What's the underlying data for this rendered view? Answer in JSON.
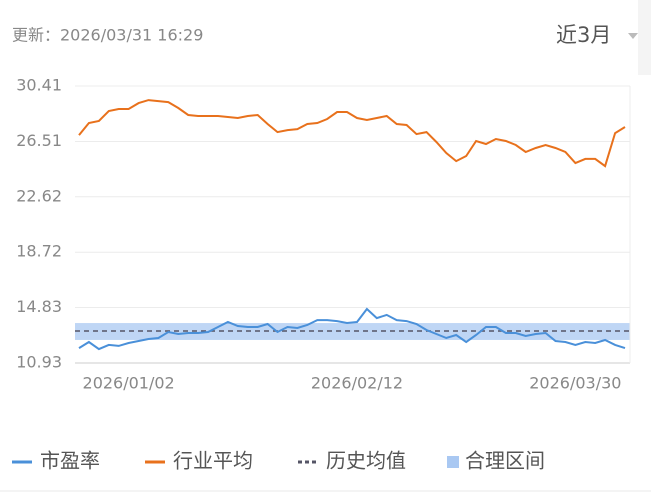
{
  "header": {
    "update": "更新：2026/03/31 16:29",
    "period": "近3月"
  },
  "chart_data": {
    "type": "line",
    "categories": [
      null,
      null,
      null,
      null,
      null,
      "2026/01/02",
      null,
      null,
      null,
      null,
      null,
      null,
      null,
      null,
      null,
      null,
      null,
      null,
      null,
      null,
      null,
      null,
      null,
      null,
      null,
      null,
      null,
      null,
      "2026/02/12",
      null,
      null,
      null,
      null,
      null,
      null,
      null,
      null,
      null,
      null,
      null,
      null,
      null,
      null,
      null,
      null,
      null,
      null,
      null,
      null,
      null,
      "2026/03/30",
      null,
      null,
      null,
      null,
      null
    ],
    "series": [
      {
        "name": "市盈率",
        "color": "#4a90d9",
        "values": [
          11.98,
          12.41,
          11.91,
          12.2,
          12.13,
          12.34,
          12.48,
          12.62,
          12.69,
          13.11,
          12.97,
          13.04,
          13.04,
          13.11,
          13.46,
          13.81,
          13.53,
          13.46,
          13.46,
          13.67,
          13.11,
          13.46,
          13.39,
          13.6,
          13.95,
          13.95,
          13.88,
          13.74,
          13.81,
          14.73,
          14.09,
          14.31,
          13.95,
          13.88,
          13.67,
          13.25,
          12.97,
          12.69,
          12.9,
          12.41,
          12.9,
          13.46,
          13.46,
          13.04,
          13.04,
          12.83,
          12.97,
          13.04,
          12.48,
          12.41,
          12.2,
          12.41,
          12.34,
          12.55,
          12.2,
          11.98
        ]
      },
      {
        "name": "行业平均",
        "color": "#e8711c",
        "values": [
          26.96,
          27.81,
          27.95,
          28.65,
          28.79,
          28.79,
          29.21,
          29.42,
          29.35,
          29.28,
          28.86,
          28.37,
          28.3,
          28.3,
          28.3,
          28.23,
          28.16,
          28.3,
          28.37,
          27.74,
          27.17,
          27.31,
          27.38,
          27.74,
          27.81,
          28.09,
          28.58,
          28.58,
          28.16,
          28.02,
          28.16,
          28.3,
          27.74,
          27.67,
          27.03,
          27.17,
          26.47,
          25.7,
          25.13,
          25.49,
          26.54,
          26.33,
          26.68,
          26.54,
          26.26,
          25.77,
          26.05,
          26.26,
          26.05,
          25.77,
          24.99,
          25.28,
          25.28,
          24.78,
          27.1,
          27.53
        ]
      }
    ],
    "mean": {
      "name": "历史均值",
      "value": 13.18,
      "color": "#555566"
    },
    "range": {
      "name": "合理区间",
      "low": 12.55,
      "high": 13.74,
      "color": "#a9c8f2"
    },
    "ylim": [
      10.93,
      30.41
    ],
    "yticks": [
      10.93,
      14.83,
      18.72,
      22.62,
      26.51,
      30.41
    ],
    "grid": true
  }
}
